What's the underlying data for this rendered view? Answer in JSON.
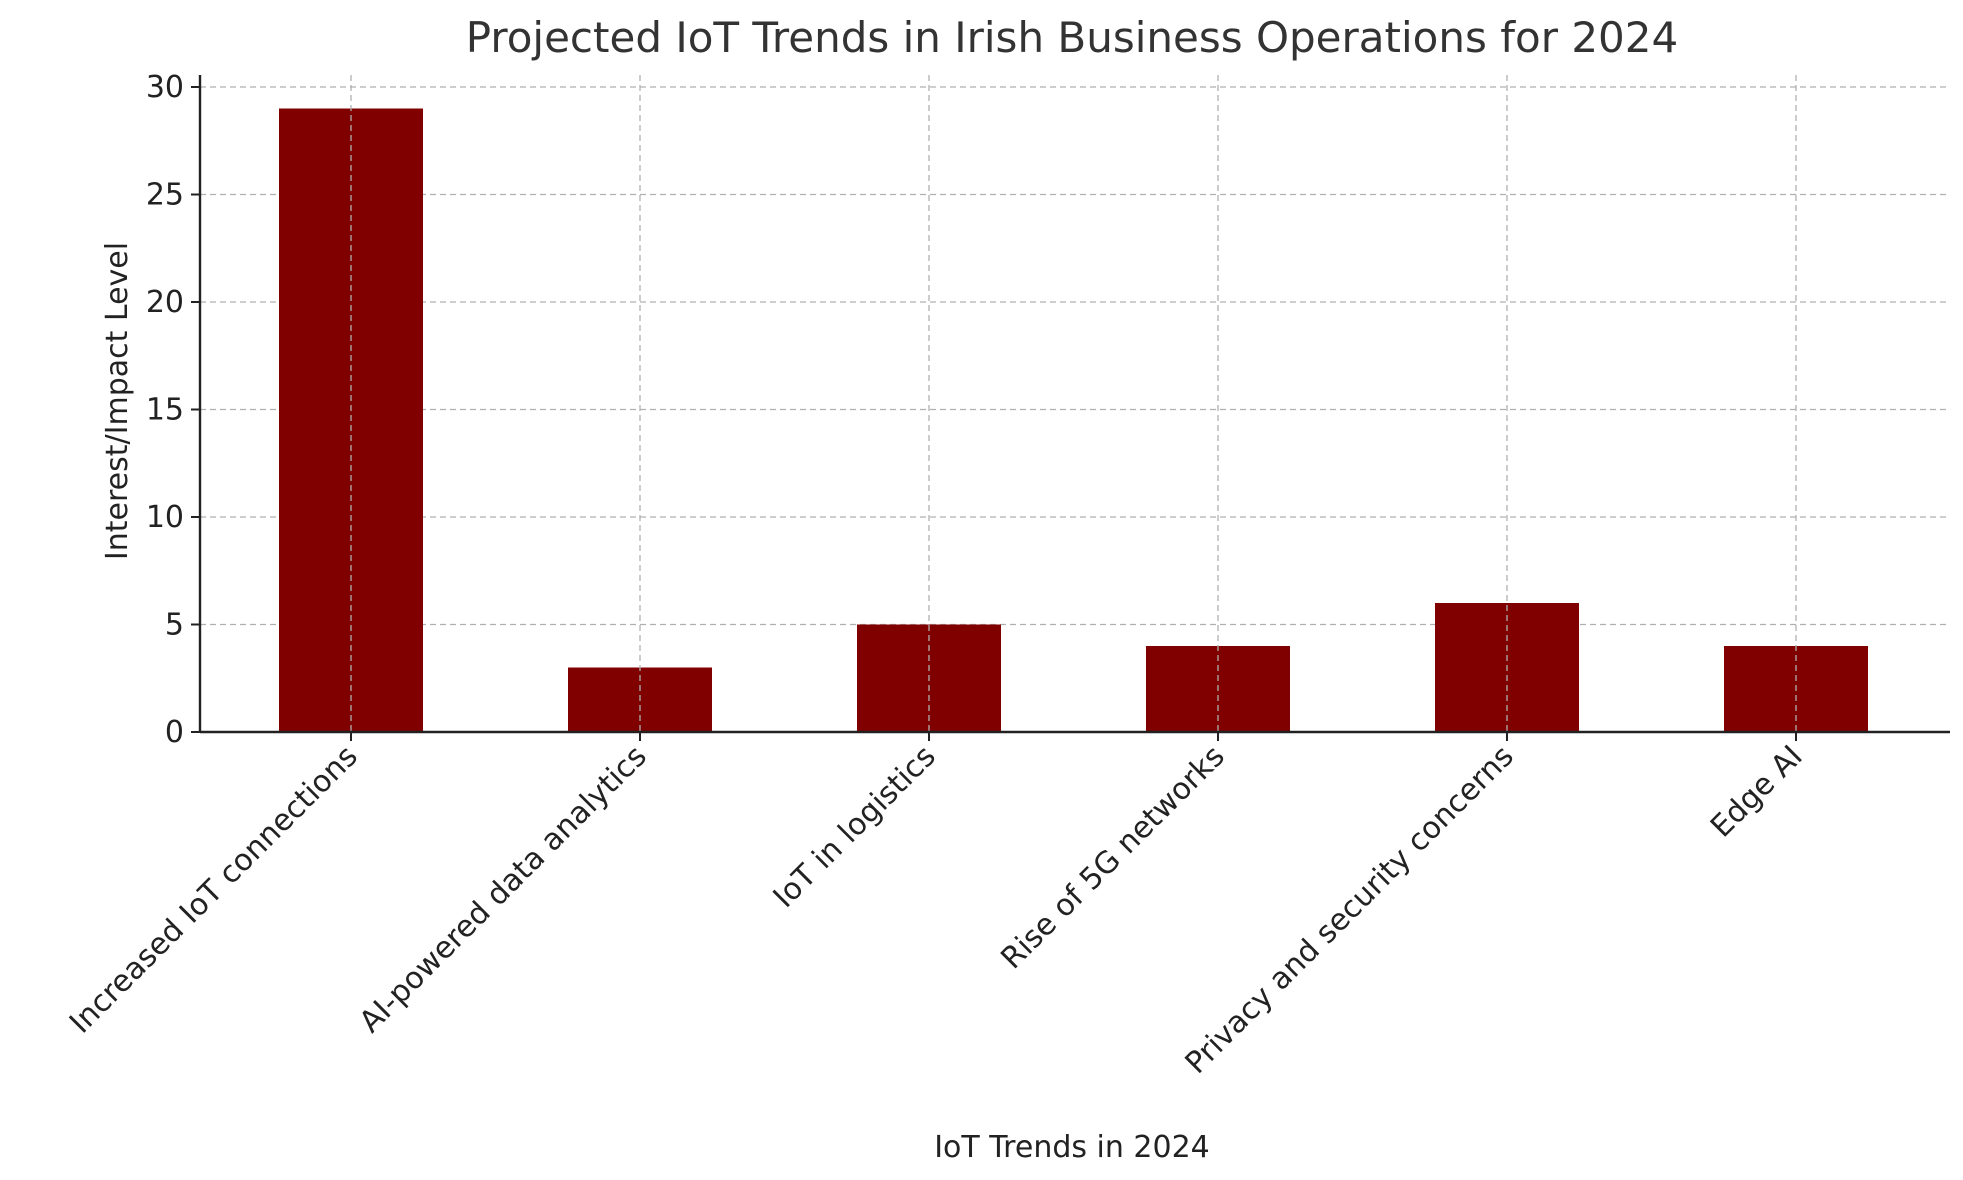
{
  "chart_data": {
    "type": "bar",
    "title": "Projected IoT Trends in Irish Business Operations for 2024",
    "xlabel": "IoT Trends in 2024",
    "ylabel": "Interest/Impact Level",
    "categories": [
      "Increased IoT connections",
      "AI-powered data analytics",
      "IoT in logistics",
      "Rise of 5G networks",
      "Privacy and security concerns",
      "Edge AI"
    ],
    "values": [
      29,
      3,
      5,
      4,
      6,
      4
    ],
    "ylim": [
      0,
      30
    ],
    "yticks": [
      "0",
      "5",
      "10",
      "15",
      "20",
      "25",
      "30"
    ],
    "grid": true,
    "bar_color": "#800000"
  }
}
